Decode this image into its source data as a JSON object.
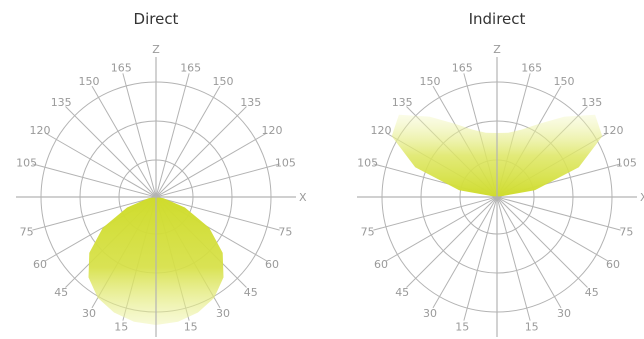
{
  "colors": {
    "grid": "#b3b3b3",
    "fill_strong": "#cfdc2c",
    "fill_light": "#eef3a6"
  },
  "chart_data": [
    {
      "type": "polar-luminous-intensity",
      "title": "Direct",
      "axis_labels": {
        "vertical": "Z",
        "horizontal": "X"
      },
      "angle_ticks": [
        "15",
        "30",
        "45",
        "60",
        "75",
        "105",
        "120",
        "135",
        "150",
        "165"
      ],
      "angle_unit": "degrees",
      "distribution": "downward",
      "lobe_angles_deg": [
        0,
        10,
        20,
        30,
        40,
        50,
        60,
        70,
        80,
        90
      ],
      "lobe_relative_intensity": [
        1.0,
        0.99,
        0.96,
        0.91,
        0.82,
        0.68,
        0.48,
        0.24,
        0.06,
        0.0
      ]
    },
    {
      "type": "polar-luminous-intensity",
      "title": "Indirect",
      "axis_labels": {
        "vertical": "Z",
        "horizontal": "X"
      },
      "angle_ticks": [
        "15",
        "30",
        "45",
        "60",
        "75",
        "105",
        "120",
        "135",
        "150",
        "165"
      ],
      "angle_unit": "degrees",
      "distribution": "upward",
      "lobe_angles_deg": [
        90,
        100,
        110,
        120,
        130,
        140,
        150,
        160,
        170,
        180
      ],
      "lobe_relative_intensity": [
        0.0,
        0.3,
        0.68,
        0.95,
        1.0,
        0.82,
        0.66,
        0.56,
        0.51,
        0.5
      ]
    }
  ]
}
